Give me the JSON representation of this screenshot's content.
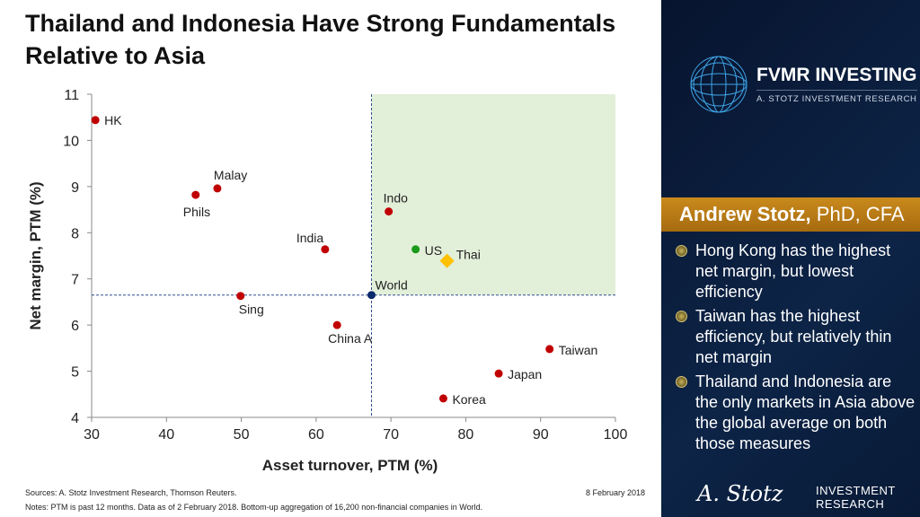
{
  "title": "Thailand and Indonesia Have Strong Fundamentals Relative to Asia",
  "chart_data": {
    "type": "scatter",
    "xlabel": "Asset turnover, PTM (%)",
    "ylabel": "Net margin, PTM (%)",
    "xlim": [
      30,
      100
    ],
    "ylim": [
      4,
      11
    ],
    "xticks": [
      30,
      40,
      50,
      60,
      70,
      80,
      90,
      100
    ],
    "yticks": [
      4,
      5,
      6,
      7,
      8,
      9,
      10,
      11
    ],
    "reference": {
      "name": "World",
      "x": 67.4,
      "y": 6.65
    },
    "points": [
      {
        "label": "HK",
        "x": 30.5,
        "y": 10.44,
        "color": "#c00000",
        "marker": "circle"
      },
      {
        "label": "Malay",
        "x": 46.8,
        "y": 8.96,
        "color": "#c00000",
        "marker": "circle"
      },
      {
        "label": "Phils",
        "x": 43.9,
        "y": 8.82,
        "color": "#c00000",
        "marker": "circle"
      },
      {
        "label": "Indo",
        "x": 69.7,
        "y": 8.46,
        "color": "#c00000",
        "marker": "circle"
      },
      {
        "label": "India",
        "x": 61.2,
        "y": 7.64,
        "color": "#c00000",
        "marker": "circle"
      },
      {
        "label": "US",
        "x": 73.3,
        "y": 7.64,
        "color": "#1a9a1a",
        "marker": "circle"
      },
      {
        "label": "Thai",
        "x": 77.5,
        "y": 7.39,
        "color": "#ffc000",
        "marker": "diamond"
      },
      {
        "label": "World",
        "x": 67.4,
        "y": 6.65,
        "color": "#0b2a6b",
        "marker": "circle"
      },
      {
        "label": "Sing",
        "x": 49.9,
        "y": 6.63,
        "color": "#c00000",
        "marker": "circle"
      },
      {
        "label": "China A",
        "x": 62.8,
        "y": 6.0,
        "color": "#c00000",
        "marker": "circle"
      },
      {
        "label": "Taiwan",
        "x": 91.2,
        "y": 5.48,
        "color": "#c00000",
        "marker": "circle"
      },
      {
        "label": "Japan",
        "x": 84.4,
        "y": 4.95,
        "color": "#c00000",
        "marker": "circle"
      },
      {
        "label": "Korea",
        "x": 77.0,
        "y": 4.41,
        "color": "#c00000",
        "marker": "circle"
      }
    ]
  },
  "footer": {
    "sources": "Sources: A. Stotz Investment Research, Thomson Reuters.",
    "notes": "Notes: PTM is past 12 months. Data as of 2 February 2018. Bottom-up aggregation of 16,200 non-financial companies in World.",
    "date": "8 February 2018"
  },
  "sidebar": {
    "logo_title": "FVMR INVESTING",
    "logo_subtitle": "A. STOTZ INVESTMENT RESEARCH",
    "author_name": "Andrew Stotz,",
    "author_credentials": " PhD, CFA",
    "bullets": [
      "Hong Kong has the highest net margin, but lowest efficiency",
      "Taiwan has the highest efficiency, but relatively thin net margin",
      "Thailand and Indonesia are the only markets in Asia above the global average on both those measures"
    ],
    "signature": "A. Stotz",
    "brand_line1": "INVESTMENT",
    "brand_line2": "RESEARCH"
  }
}
